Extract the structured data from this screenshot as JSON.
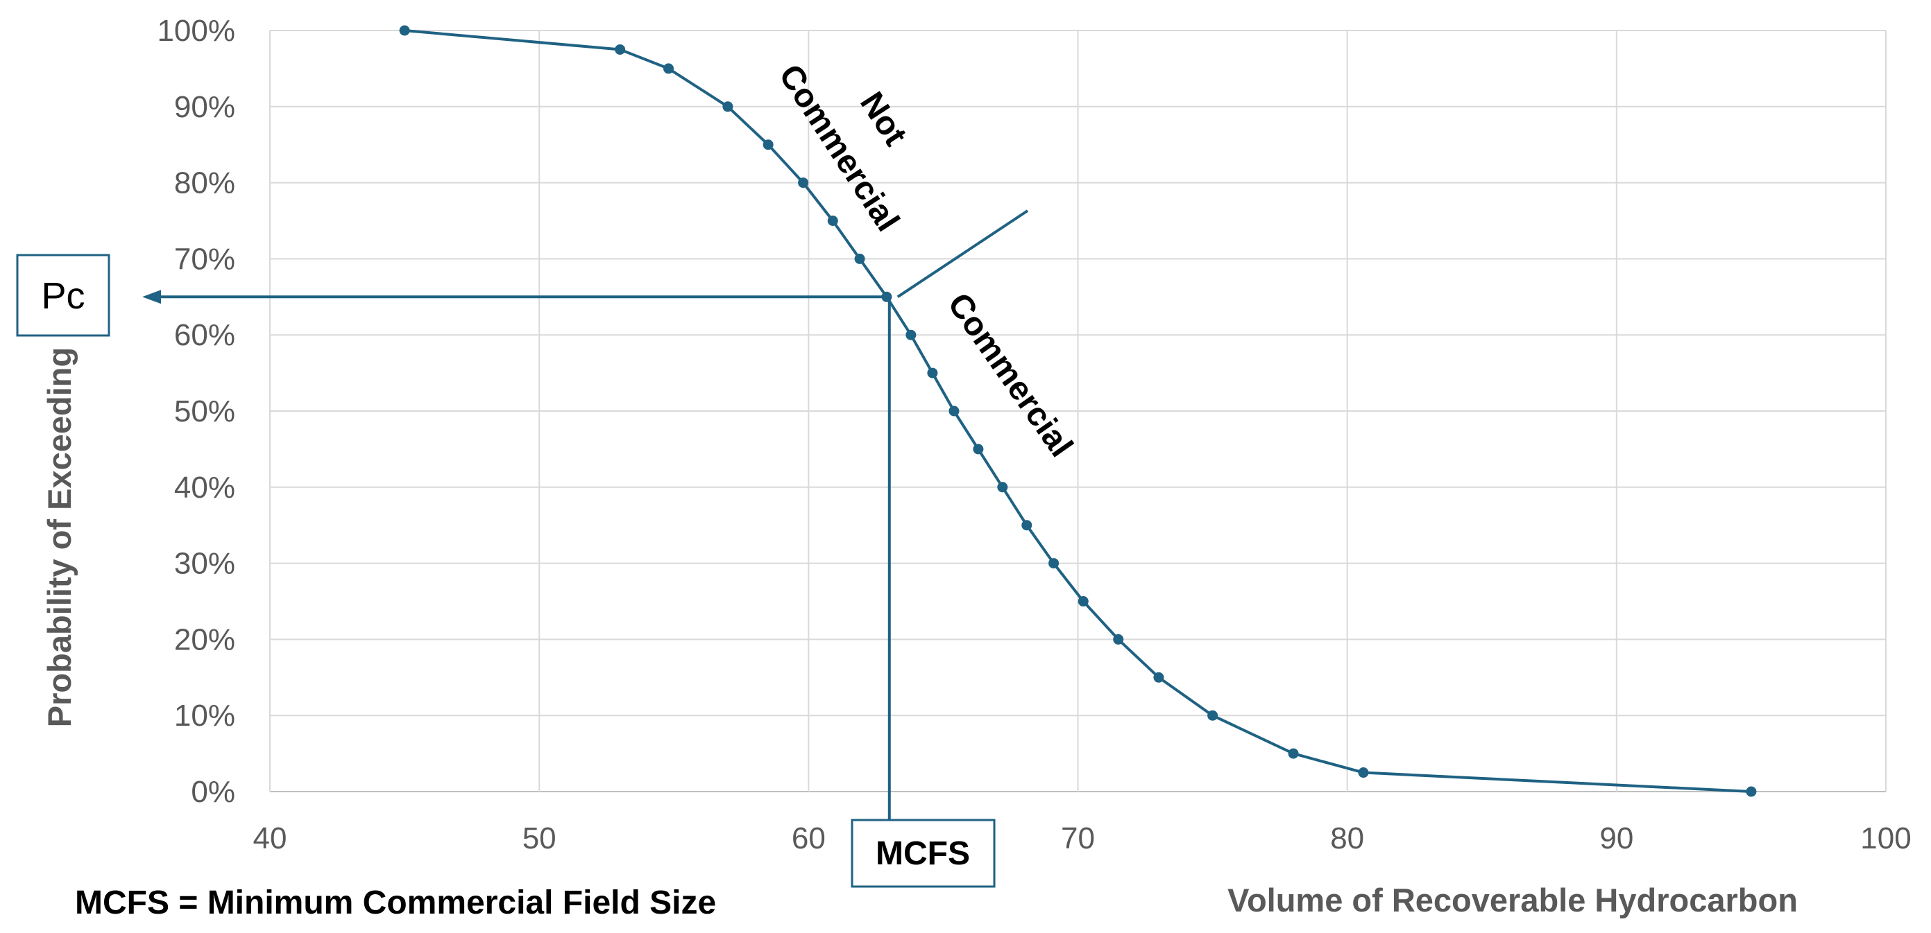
{
  "chart_data": {
    "type": "line",
    "xlabel": "Volume of Recoverable Hydrocarbon",
    "ylabel": "Probability of Exceeding",
    "xlim": [
      40,
      100
    ],
    "ylim": [
      0,
      100
    ],
    "x_ticks": [
      "40",
      "50",
      "60",
      "70",
      "80",
      "90",
      "100"
    ],
    "y_ticks": [
      "0%",
      "10%",
      "20%",
      "30%",
      "40%",
      "50%",
      "60%",
      "70%",
      "80%",
      "90%",
      "100%"
    ],
    "grid": true,
    "series": [
      {
        "name": "Probability of Exceeding",
        "color": "#1f6283",
        "x": [
          45,
          53,
          54.8,
          57,
          58.5,
          59.8,
          60.9,
          61.9,
          62.9,
          63.8,
          64.6,
          65.4,
          66.3,
          67.2,
          68.1,
          69.1,
          70.2,
          71.5,
          73,
          75,
          78,
          80.6,
          95
        ],
        "values": [
          100,
          97.5,
          95,
          90,
          85,
          80,
          75,
          70,
          65,
          60,
          55,
          50,
          45,
          40,
          35,
          30,
          25,
          20,
          15,
          10,
          5,
          2.5,
          0
        ]
      }
    ],
    "annotations": {
      "mcfs_x": 63,
      "pc_y": 65,
      "mcfs_label": "MCFS",
      "pc_label": "Pc",
      "not_commercial_line1": "Not",
      "not_commercial_line2": "Commercial",
      "commercial_label": "Commercial",
      "note": "MCFS = Minimum Commercial Field Size"
    }
  }
}
